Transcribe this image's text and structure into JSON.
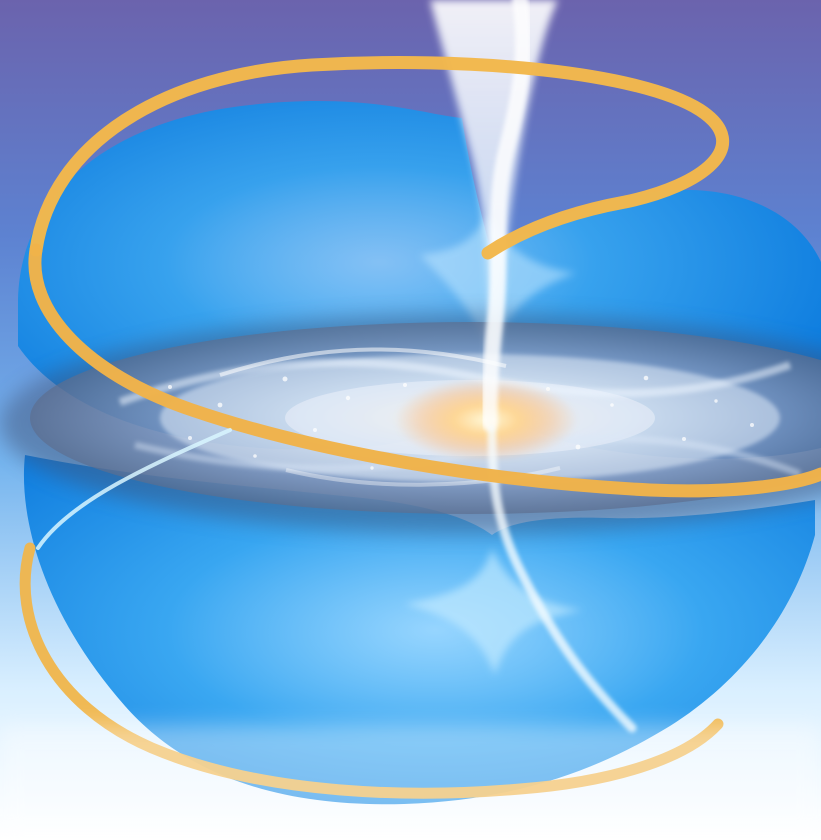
{
  "image": {
    "subject": "galaxy-with-jet-and-helical-magnetic-field-loops",
    "colors": {
      "sky_top": "#6f6fb4",
      "sky_mid": "#5d8fd8",
      "sky_bottom": "#f6fbff",
      "lobe_blue": "#1f93ea",
      "lobe_light": "#8fd1ff",
      "ring_orange": "#f0b54a",
      "jet_white": "#f7fbff",
      "disk_white": "#dfe8f4",
      "disk_dark": "#4c5b78",
      "core_glow": "#ffd38a"
    }
  }
}
